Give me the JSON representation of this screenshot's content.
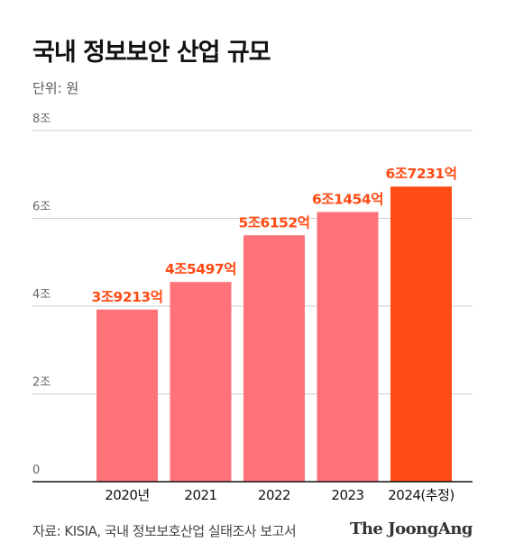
{
  "title": "국내 정보보안 산업 규모",
  "unit": "단위: 원",
  "source": "자료: KISIA, 국내 정보보호산업 실태조사 보고서",
  "logo": "The JoongAng",
  "colors": {
    "bar": "#ff727a",
    "highlight": "#ff4b14",
    "label": "#ff4b14",
    "grid": "#cccccc",
    "axis": "#111111"
  },
  "chart_data": {
    "type": "bar",
    "categories": [
      "2020년",
      "2021",
      "2022",
      "2023",
      "2024(추정)"
    ],
    "values": [
      3.9213,
      4.5497,
      5.6152,
      6.1454,
      6.7231
    ],
    "data_labels": [
      "3조9213억",
      "4조5497억",
      "5조6152억",
      "6조1454억",
      "6조7231억"
    ],
    "highlight_index": 4,
    "ylim": [
      0,
      8
    ],
    "yticks": [
      0,
      2,
      4,
      6,
      8
    ],
    "ytick_labels": [
      "0",
      "2조",
      "4조",
      "6조",
      "8조"
    ],
    "grid": true,
    "xlabel": "",
    "ylabel": ""
  }
}
